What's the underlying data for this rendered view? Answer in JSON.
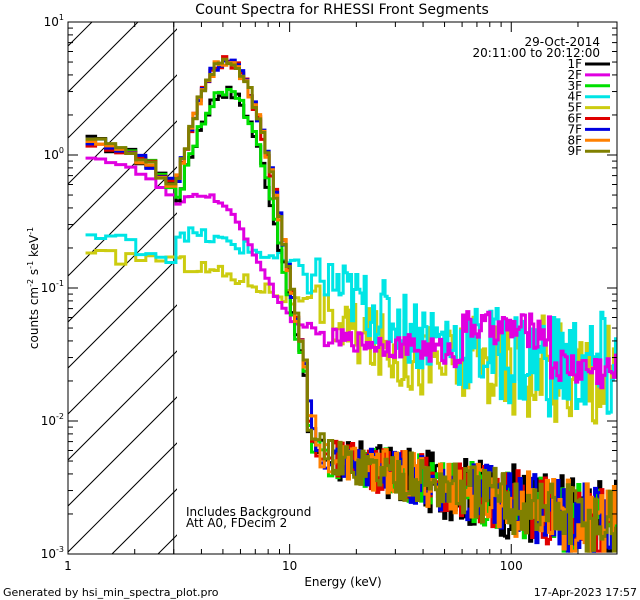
{
  "chart_data": {
    "type": "line",
    "title": "Count Spectra for RHESSI Front Segments",
    "xlabel": "Energy (keV)",
    "ylabel": "counts cm",
    "ylabel_sup1": "-2",
    "ylabel_mid": " s",
    "ylabel_sup2": "-1",
    "ylabel_end": " keV",
    "ylabel_sup3": "-1",
    "xscale": "log",
    "yscale": "log",
    "xlim": [
      1,
      300
    ],
    "ylim": [
      0.001,
      10
    ],
    "x_ticks": [
      {
        "value": 1,
        "label": "1"
      },
      {
        "value": 10,
        "label": "10"
      },
      {
        "value": 100,
        "label": "100"
      }
    ],
    "y_ticks": [
      {
        "value": 0.001,
        "base": "10",
        "exp": "-3"
      },
      {
        "value": 0.01,
        "base": "10",
        "exp": "-2"
      },
      {
        "value": 0.1,
        "base": "10",
        "exp": "-1"
      },
      {
        "value": 1,
        "base": "10",
        "exp": "0"
      },
      {
        "value": 10,
        "base": "10",
        "exp": "1"
      }
    ],
    "attenuator_cutoff_kev": 3,
    "date_label": "29-Oct-2014",
    "time_range_label": "20:11:00 to 20:12:00",
    "annotation_line1": "Includes Background",
    "annotation_line2": "Att A0, FDecim 2",
    "footer_left": "Generated by hsi_min_spectra_plot.pro",
    "footer_right": "17-Apr-2023 17:57",
    "legend_position": "top-right",
    "series": [
      {
        "name": "1F",
        "color": "#000000",
        "shape": "peak_low",
        "noise": 0.35
      },
      {
        "name": "2F",
        "color": "#e000e0",
        "shape": "mid",
        "noise": 0.15
      },
      {
        "name": "3F",
        "color": "#00e000",
        "shape": "peak_low",
        "noise": 0.3
      },
      {
        "name": "4F",
        "color": "#00e5e5",
        "shape": "flat",
        "noise": 0.45
      },
      {
        "name": "5F",
        "color": "#cccc10",
        "shape": "flat2",
        "noise": 0.45
      },
      {
        "name": "6F",
        "color": "#e00000",
        "shape": "peak_high",
        "noise": 0.3
      },
      {
        "name": "7F",
        "color": "#0000e0",
        "shape": "peak_high",
        "noise": 0.3
      },
      {
        "name": "8F",
        "color": "#ff8000",
        "shape": "peak_high",
        "noise": 0.3
      },
      {
        "name": "9F",
        "color": "#808000",
        "shape": "peak_high",
        "noise": 0.3
      }
    ]
  }
}
